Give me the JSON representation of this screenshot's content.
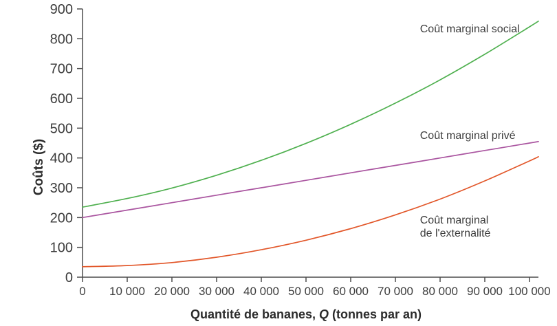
{
  "chart_data": {
    "type": "line",
    "title": "",
    "ylabel": "Coûts ($)",
    "xlabel_parts": {
      "prefix": "Quantité de bananes, ",
      "italic": "Q",
      "suffix": " (tonnes par an)"
    },
    "xlim": [
      0,
      102000
    ],
    "ylim": [
      0,
      900
    ],
    "grid": false,
    "legend": "inline-annotations",
    "axis_color": "#4d4d4d",
    "text_color": "#3d3d3d",
    "x": [
      0,
      10000,
      20000,
      30000,
      40000,
      50000,
      60000,
      70000,
      80000,
      90000,
      100000,
      102000
    ],
    "series": [
      {
        "name": "Coût marginal social",
        "color": "#4fb04f",
        "values": [
          235,
          264,
          299,
          342,
          392,
          449,
          513,
          584,
          662,
          748,
          840,
          859
        ]
      },
      {
        "name": "Coût marginal privé",
        "color": "#aa55a0",
        "values": [
          200,
          225,
          250,
          275,
          300,
          325,
          350,
          375,
          400,
          425,
          450,
          455
        ]
      },
      {
        "name": "Coût marginal de l'externalité",
        "color": "#e2572a",
        "values": [
          35,
          39,
          49,
          67,
          92,
          124,
          163,
          209,
          262,
          323,
          390,
          404
        ]
      }
    ],
    "xticks": {
      "values": [
        0,
        10000,
        20000,
        30000,
        40000,
        50000,
        60000,
        70000,
        80000,
        90000,
        100000
      ],
      "labels": [
        "0",
        "10 000",
        "20 000",
        "30 000",
        "40 000",
        "50 000",
        "60 000",
        "70 000",
        "80 000",
        "90 000",
        "100 000"
      ]
    },
    "yticks": {
      "values": [
        0,
        100,
        200,
        300,
        400,
        500,
        600,
        700,
        800,
        900
      ],
      "labels": [
        "0",
        "100",
        "200",
        "300",
        "400",
        "500",
        "600",
        "700",
        "800",
        "900"
      ]
    },
    "annotations": [
      {
        "text": "Coût marginal social",
        "q": 75500,
        "cost": 854
      },
      {
        "text": "Coût marginal privé",
        "q": 75500,
        "cost": 496
      },
      {
        "text": "Coût marginal\nde l'externalité",
        "q": 75500,
        "cost": 212
      }
    ]
  }
}
